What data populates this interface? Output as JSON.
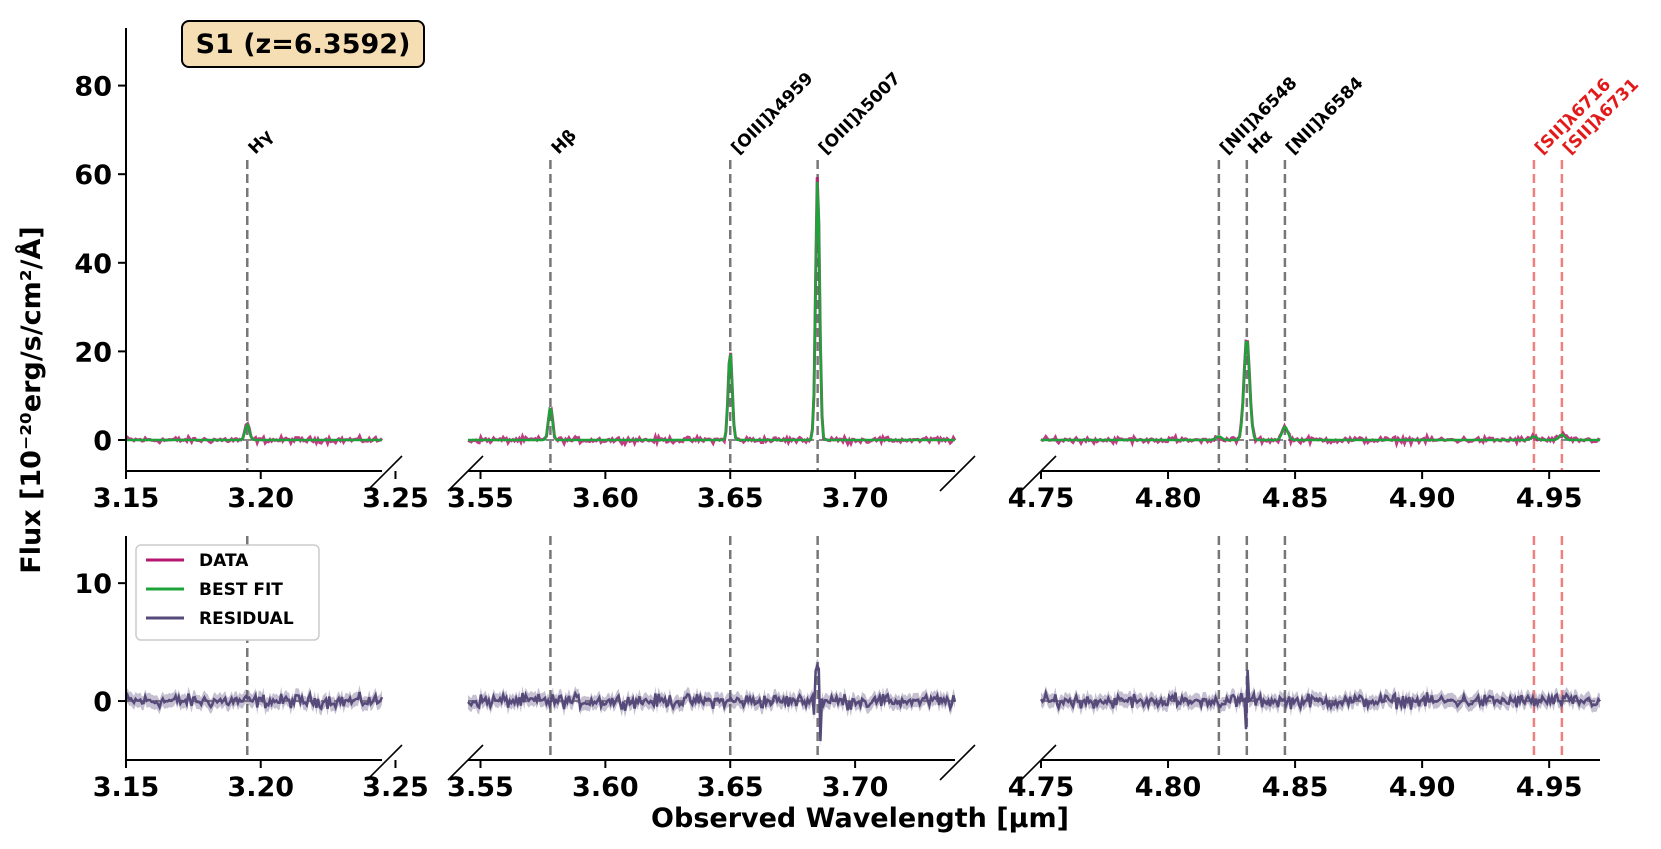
{
  "chart_data": {
    "type": "line",
    "source_label": "S1 (z=6.3592)",
    "xlabel": "Observed Wavelength [μm]",
    "ylabel": "Flux [10⁻²⁰erg/s/cm²/Å]",
    "legend": {
      "position": "top-left of residual panel",
      "entries": [
        "DATA",
        "BEST FIT",
        "RESIDUAL"
      ]
    },
    "colors": {
      "data": "#b5176f",
      "best_fit": "#1ea33a",
      "residual": "#554a7a",
      "line_marker": "#777777",
      "sii_marker": "#f08080",
      "sii_label": "#e31a1a",
      "label_box_fill": "#f5deb3"
    },
    "top_panel": {
      "ylim": [
        -7,
        93
      ],
      "yticks": [
        0,
        20,
        40,
        60,
        80
      ]
    },
    "bottom_panel": {
      "ylim": [
        -5,
        14
      ],
      "yticks": [
        0,
        10
      ]
    },
    "segments": [
      {
        "xlim": [
          3.15,
          3.245
        ],
        "xticks": [
          3.15,
          3.2,
          3.25
        ]
      },
      {
        "xlim": [
          3.545,
          3.74
        ],
        "xticks": [
          3.55,
          3.6,
          3.65,
          3.7
        ]
      },
      {
        "xlim": [
          4.75,
          4.97
        ],
        "xticks": [
          4.75,
          4.8,
          4.85,
          4.9,
          4.95
        ]
      }
    ],
    "emission_lines": [
      {
        "name": "Hγ",
        "x": 3.195,
        "peak": 3.5,
        "sigma": 0.0008,
        "color": "gray"
      },
      {
        "name": "Hβ",
        "x": 3.578,
        "peak": 7.5,
        "sigma": 0.0008,
        "color": "gray"
      },
      {
        "name": "[OIII]λ4959",
        "x": 3.65,
        "peak": 20.0,
        "sigma": 0.0008,
        "color": "gray"
      },
      {
        "name": "[OIII]λ5007",
        "x": 3.685,
        "peak": 59.5,
        "sigma": 0.0008,
        "color": "gray"
      },
      {
        "name": "[NII]λ6548",
        "x": 4.82,
        "peak": 0.8,
        "sigma": 0.0011,
        "color": "gray"
      },
      {
        "name": "Hα",
        "x": 4.831,
        "peak": 23.0,
        "sigma": 0.0011,
        "color": "gray"
      },
      {
        "name": "[NII]λ6584",
        "x": 4.846,
        "peak": 3.0,
        "sigma": 0.0011,
        "color": "gray"
      },
      {
        "name": "[SII]λ6716",
        "x": 4.944,
        "peak": 0.8,
        "sigma": 0.0011,
        "color": "red"
      },
      {
        "name": "[SII]λ6731",
        "x": 4.955,
        "peak": 1.2,
        "sigma": 0.0011,
        "color": "red"
      }
    ]
  }
}
